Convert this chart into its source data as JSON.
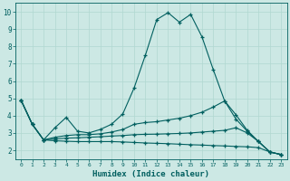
{
  "xlabel": "Humidex (Indice chaleur)",
  "bg_color": "#cce8e4",
  "grid_color": "#b0d8d0",
  "line_color": "#005f5f",
  "xlim": [
    -0.5,
    23.5
  ],
  "ylim": [
    1.5,
    10.5
  ],
  "xticks": [
    0,
    1,
    2,
    3,
    4,
    5,
    6,
    7,
    8,
    9,
    10,
    11,
    12,
    13,
    14,
    15,
    16,
    17,
    18,
    19,
    20,
    21,
    22,
    23
  ],
  "yticks": [
    2,
    3,
    4,
    5,
    6,
    7,
    8,
    9,
    10
  ],
  "line1_x": [
    0,
    1,
    2,
    3,
    4,
    5,
    6,
    7,
    8,
    9,
    10,
    11,
    12,
    13,
    14,
    15,
    16,
    17,
    18,
    19,
    20,
    21,
    22,
    23
  ],
  "line1_y": [
    4.9,
    3.5,
    2.6,
    3.3,
    3.9,
    3.1,
    3.0,
    3.2,
    3.5,
    4.1,
    5.6,
    7.5,
    9.55,
    9.95,
    9.4,
    9.85,
    8.55,
    6.65,
    4.85,
    4.05,
    3.15,
    2.5,
    1.9,
    1.75
  ],
  "line2_x": [
    0,
    1,
    2,
    3,
    4,
    5,
    6,
    7,
    8,
    9,
    10,
    11,
    12,
    13,
    14,
    15,
    16,
    17,
    18,
    19,
    20,
    21,
    22,
    23
  ],
  "line2_y": [
    4.9,
    3.5,
    2.6,
    2.75,
    2.85,
    2.9,
    2.9,
    2.95,
    3.05,
    3.2,
    3.5,
    3.6,
    3.65,
    3.75,
    3.85,
    4.0,
    4.2,
    4.5,
    4.85,
    3.8,
    3.1,
    2.5,
    1.9,
    1.75
  ],
  "line3_x": [
    0,
    1,
    2,
    3,
    4,
    5,
    6,
    7,
    8,
    9,
    10,
    11,
    12,
    13,
    14,
    15,
    16,
    17,
    18,
    19,
    20,
    21,
    22,
    23
  ],
  "line3_y": [
    4.9,
    3.5,
    2.6,
    2.65,
    2.7,
    2.72,
    2.75,
    2.78,
    2.82,
    2.85,
    2.9,
    2.92,
    2.93,
    2.95,
    2.97,
    3.0,
    3.05,
    3.1,
    3.15,
    3.3,
    3.0,
    2.5,
    1.9,
    1.75
  ],
  "line4_x": [
    0,
    1,
    2,
    3,
    4,
    5,
    6,
    7,
    8,
    9,
    10,
    11,
    12,
    13,
    14,
    15,
    16,
    17,
    18,
    19,
    20,
    21,
    22,
    23
  ],
  "line4_y": [
    4.9,
    3.5,
    2.6,
    2.55,
    2.52,
    2.5,
    2.5,
    2.5,
    2.5,
    2.48,
    2.45,
    2.42,
    2.4,
    2.38,
    2.35,
    2.32,
    2.3,
    2.27,
    2.25,
    2.22,
    2.2,
    2.15,
    1.9,
    1.75
  ]
}
